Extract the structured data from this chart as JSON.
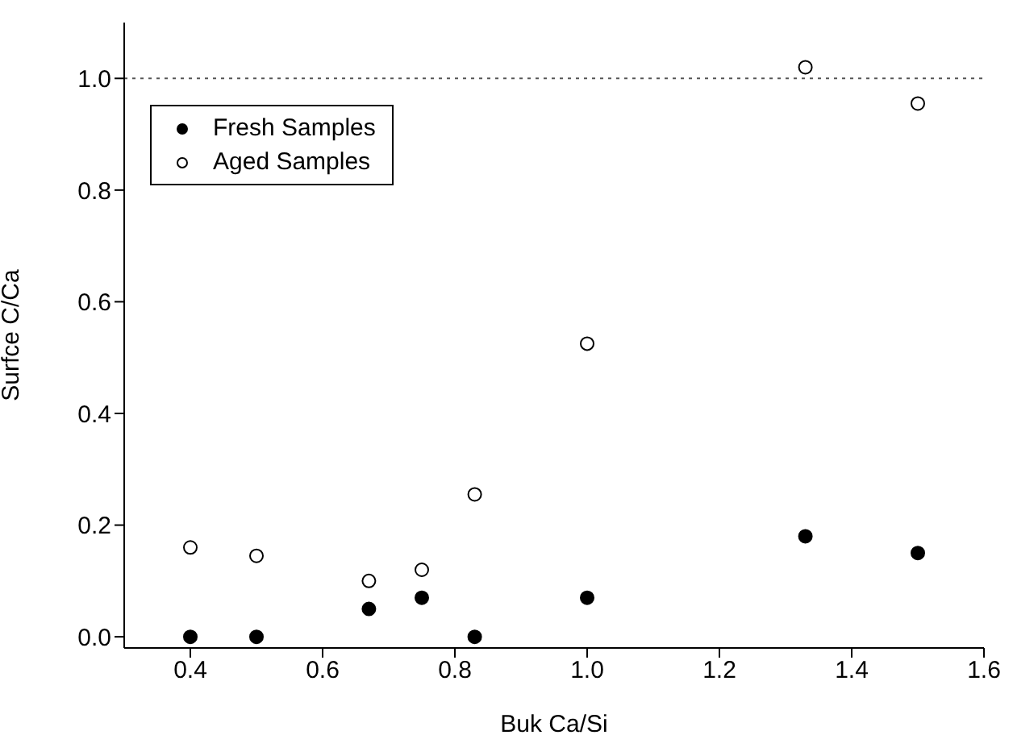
{
  "chart_data": {
    "type": "scatter",
    "xlabel": "Buk Ca/Si",
    "ylabel": "Surfce C/Ca",
    "x": [
      0.4,
      0.5,
      0.67,
      0.75,
      0.83,
      1.0,
      1.33,
      1.5
    ],
    "series": [
      {
        "name": "Fresh Samples",
        "color": "#000000",
        "values": [
          0.0,
          0.0,
          0.05,
          0.07,
          0.0,
          0.07,
          0.18,
          0.15
        ]
      },
      {
        "name": "Aged Samples",
        "color": "#000000",
        "values": [
          0.16,
          0.145,
          0.1,
          0.12,
          0.255,
          0.525,
          1.02,
          0.955
        ]
      }
    ],
    "xlim": [
      0.3,
      1.6
    ],
    "xticks": [
      0.4,
      0.6,
      0.8,
      {
        "value": 1.0,
        "label": "1.0"
      },
      1.2,
      1.4,
      1.6
    ],
    "ylim": [
      -0.02,
      1.1
    ],
    "yticks": [
      {
        "value": 0,
        "label": "0.0"
      },
      0.2,
      0.4,
      0.6,
      0.8,
      {
        "value": 1.0,
        "label": "1.0"
      }
    ],
    "ref_lines": [
      {
        "axis": "y",
        "value": 1.0,
        "line_style": "dotted",
        "color": "#555555"
      }
    ],
    "marker": "circle",
    "legend": "top left",
    "grid": false
  }
}
